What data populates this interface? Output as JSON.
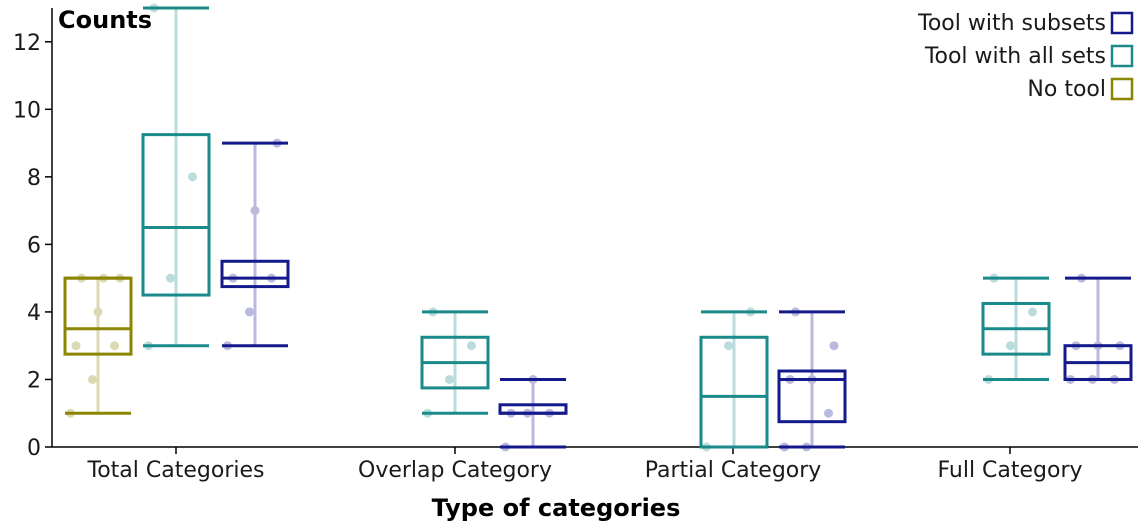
{
  "chart_data": {
    "type": "box",
    "title": "",
    "xlabel": "Type of categories",
    "ylabel": "Counts",
    "ylim": [
      0,
      13
    ],
    "yticks": [
      0,
      2,
      4,
      6,
      8,
      10,
      12
    ],
    "categories": [
      "Total Categories",
      "Overlap Category",
      "Partial Category",
      "Full Category"
    ],
    "legend_position": "top-right",
    "series": [
      {
        "name": "No tool",
        "color": "#8c8500",
        "boxes": [
          {
            "category": "Total Categories",
            "min": 1,
            "q1": 2.75,
            "median": 3.5,
            "q3": 5,
            "max": 5,
            "points": [
              1,
              2,
              3,
              3,
              4,
              5,
              5,
              5
            ]
          }
        ]
      },
      {
        "name": "Tool with all sets",
        "color": "#1a8a8a",
        "boxes": [
          {
            "category": "Total Categories",
            "min": 3,
            "q1": 4.5,
            "median": 6.5,
            "q3": 9.25,
            "max": 13,
            "points": [
              3,
              5,
              8,
              13
            ]
          },
          {
            "category": "Overlap Category",
            "min": 1,
            "q1": 1.75,
            "median": 2.5,
            "q3": 3.25,
            "max": 4,
            "points": [
              1,
              2,
              3,
              4
            ]
          },
          {
            "category": "Partial Category",
            "min": 0,
            "q1": 0,
            "median": 1.5,
            "q3": 3.25,
            "max": 4,
            "points": [
              0,
              3,
              4
            ]
          },
          {
            "category": "Full Category",
            "min": 2,
            "q1": 2.75,
            "median": 3.5,
            "q3": 4.25,
            "max": 5,
            "points": [
              2,
              3,
              4,
              5
            ]
          }
        ]
      },
      {
        "name": "Tool with subsets",
        "color": "#141a8c",
        "boxes": [
          {
            "category": "Total Categories",
            "min": 3,
            "q1": 4.75,
            "median": 5,
            "q3": 5.5,
            "max": 9,
            "points": [
              3,
              4,
              5,
              5,
              7,
              9
            ]
          },
          {
            "category": "Overlap Category",
            "min": 0,
            "q1": 1,
            "median": 1,
            "q3": 1.25,
            "max": 2,
            "points": [
              0,
              1,
              1,
              1,
              2
            ]
          },
          {
            "category": "Partial Category",
            "min": 0,
            "q1": 0.75,
            "median": 2,
            "q3": 2.25,
            "max": 4,
            "points": [
              0,
              0,
              1,
              2,
              2,
              3,
              4
            ]
          },
          {
            "category": "Full Category",
            "min": 2,
            "q1": 2,
            "median": 2.5,
            "q3": 3,
            "max": 5,
            "points": [
              2,
              2,
              2,
              3,
              3,
              3,
              5
            ]
          }
        ]
      }
    ],
    "legend_order": [
      "Tool with subsets",
      "Tool with all sets",
      "No tool"
    ]
  }
}
